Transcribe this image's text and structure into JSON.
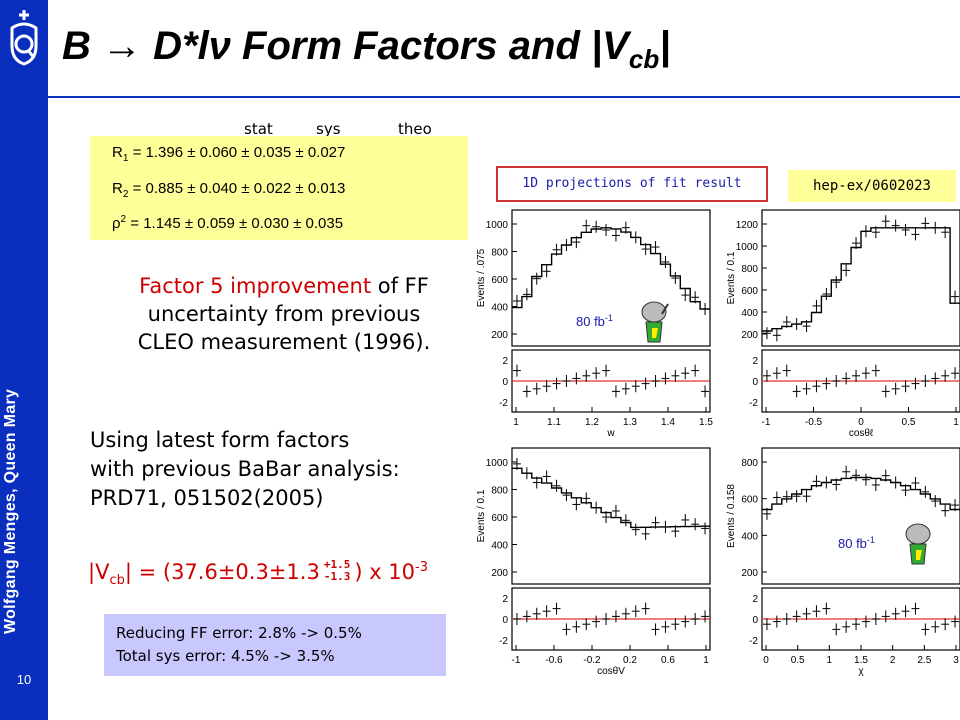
{
  "slide": {
    "title_main": "B → D*lν Form Factors and |V",
    "title_sub": "cb",
    "title_end": "|",
    "author": "Wolfgang Menges, Queen Mary",
    "page_number": "10"
  },
  "results": {
    "col_stat": "stat",
    "col_sys": "sys",
    "col_theo": "theo",
    "r1_label": "R",
    "r1_sub": "1",
    "r1_values": " = 1.396 ± 0.060 ± 0.035 ± 0.027",
    "r2_label": "R",
    "r2_sub": "2",
    "r2_values": " = 0.885 ± 0.040 ± 0.022 ± 0.013",
    "rho_label": "ρ",
    "rho_sup": "2",
    "rho_values": " = 1.145 ± 0.059 ± 0.030 ± 0.035"
  },
  "improvement": {
    "highlight": "Factor 5 improvement",
    "rest_line1": " of FF",
    "line2": "uncertainty from previous",
    "line3": "CLEO measurement (1996)."
  },
  "using": {
    "line1": "Using latest form factors",
    "line2": "with previous BaBar analysis:",
    "line3": "PRD71, 051502(2005)"
  },
  "vcb": {
    "prefix": "|V",
    "sub": "cb",
    "middle": "| = (37.6±0.3±1.3",
    "plus": "+1.5",
    "minus": "-1.3",
    "suffix": ") x 10",
    "exp": "-3"
  },
  "note": {
    "line1": "Reducing FF error: 2.8% -> 0.5%",
    "line2": "Total sys error: 4.5% -> 3.5%"
  },
  "labels": {
    "projections": "1D projections of fit result",
    "reference": "hep-ex/0602023",
    "lumi_a": "80 fb",
    "lumi_b": "80 fb",
    "lumi_exp": "-1"
  },
  "plots": {
    "ylabel_w": "Events / .075",
    "ylabel_l": "Events / 0.1",
    "ylabel_v": "Events / 0.1",
    "ylabel_chi": "Events / 0.158",
    "xlabel_w": "w",
    "xlabel_l": "cosθℓ",
    "xlabel_v": "cosθV",
    "xlabel_chi": "χ",
    "ticks_w": [
      "1",
      "1.1",
      "1.2",
      "1.3",
      "1.4",
      "1.5"
    ],
    "ticks_l": [
      "-1",
      "-0.5",
      "0",
      "0.5",
      "1"
    ],
    "ticks_v": [
      "-1",
      "-0.6",
      "-0.2",
      "0.2",
      "0.6",
      "1"
    ],
    "ticks_chi": [
      "0",
      "0.5",
      "1",
      "1.5",
      "2",
      "2.5",
      "3"
    ],
    "yticks_w": [
      "1000",
      "800",
      "600",
      "400",
      "200"
    ],
    "yticks_l": [
      "1200",
      "1000",
      "800",
      "600",
      "400",
      "200"
    ],
    "yticks_v": [
      "1000",
      "800",
      "600",
      "400",
      "200"
    ],
    "yticks_chi": [
      "800",
      "600",
      "400",
      "200"
    ],
    "resid_ticks": [
      "2",
      "0",
      "-2"
    ]
  }
}
